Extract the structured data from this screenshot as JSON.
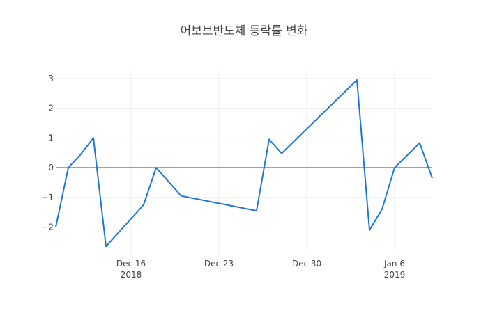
{
  "chart_data": {
    "type": "line",
    "title": "어보브반도체 등락률 변화",
    "x": [
      "2018-12-10",
      "2018-12-11",
      "2018-12-12",
      "2018-12-13",
      "2018-12-14",
      "2018-12-17",
      "2018-12-18",
      "2018-12-20",
      "2018-12-26",
      "2018-12-27",
      "2018-12-28",
      "2019-01-03",
      "2019-01-04",
      "2019-01-05",
      "2019-01-06",
      "2019-01-08",
      "2019-01-09"
    ],
    "values": [
      -2.0,
      0.0,
      0.45,
      1.0,
      -2.65,
      -1.25,
      0.0,
      -0.95,
      -1.45,
      0.95,
      0.48,
      2.95,
      -2.1,
      -1.4,
      0.0,
      0.83,
      -0.35
    ],
    "xlim": [
      "2018-12-10",
      "2019-01-09"
    ],
    "ylim": [
      -2.9,
      3.3
    ],
    "x_ticks": [
      {
        "date": "2018-12-16",
        "label": "Dec 16",
        "sub": "2018"
      },
      {
        "date": "2018-12-23",
        "label": "Dec 23",
        "sub": ""
      },
      {
        "date": "2018-12-30",
        "label": "Dec 30",
        "sub": ""
      },
      {
        "date": "2019-01-06",
        "label": "Jan 6",
        "sub": "2019"
      }
    ],
    "y_ticks": [
      {
        "value": 3,
        "label": "3"
      },
      {
        "value": 2,
        "label": "2"
      },
      {
        "value": 1,
        "label": "1"
      },
      {
        "value": 0,
        "label": "0"
      },
      {
        "value": -1,
        "label": "−1"
      },
      {
        "value": -2,
        "label": "−2"
      }
    ],
    "grid": true,
    "line_color": "#1f77d4",
    "zero_line_color": "#444444",
    "grid_color": "#eeeeee"
  }
}
